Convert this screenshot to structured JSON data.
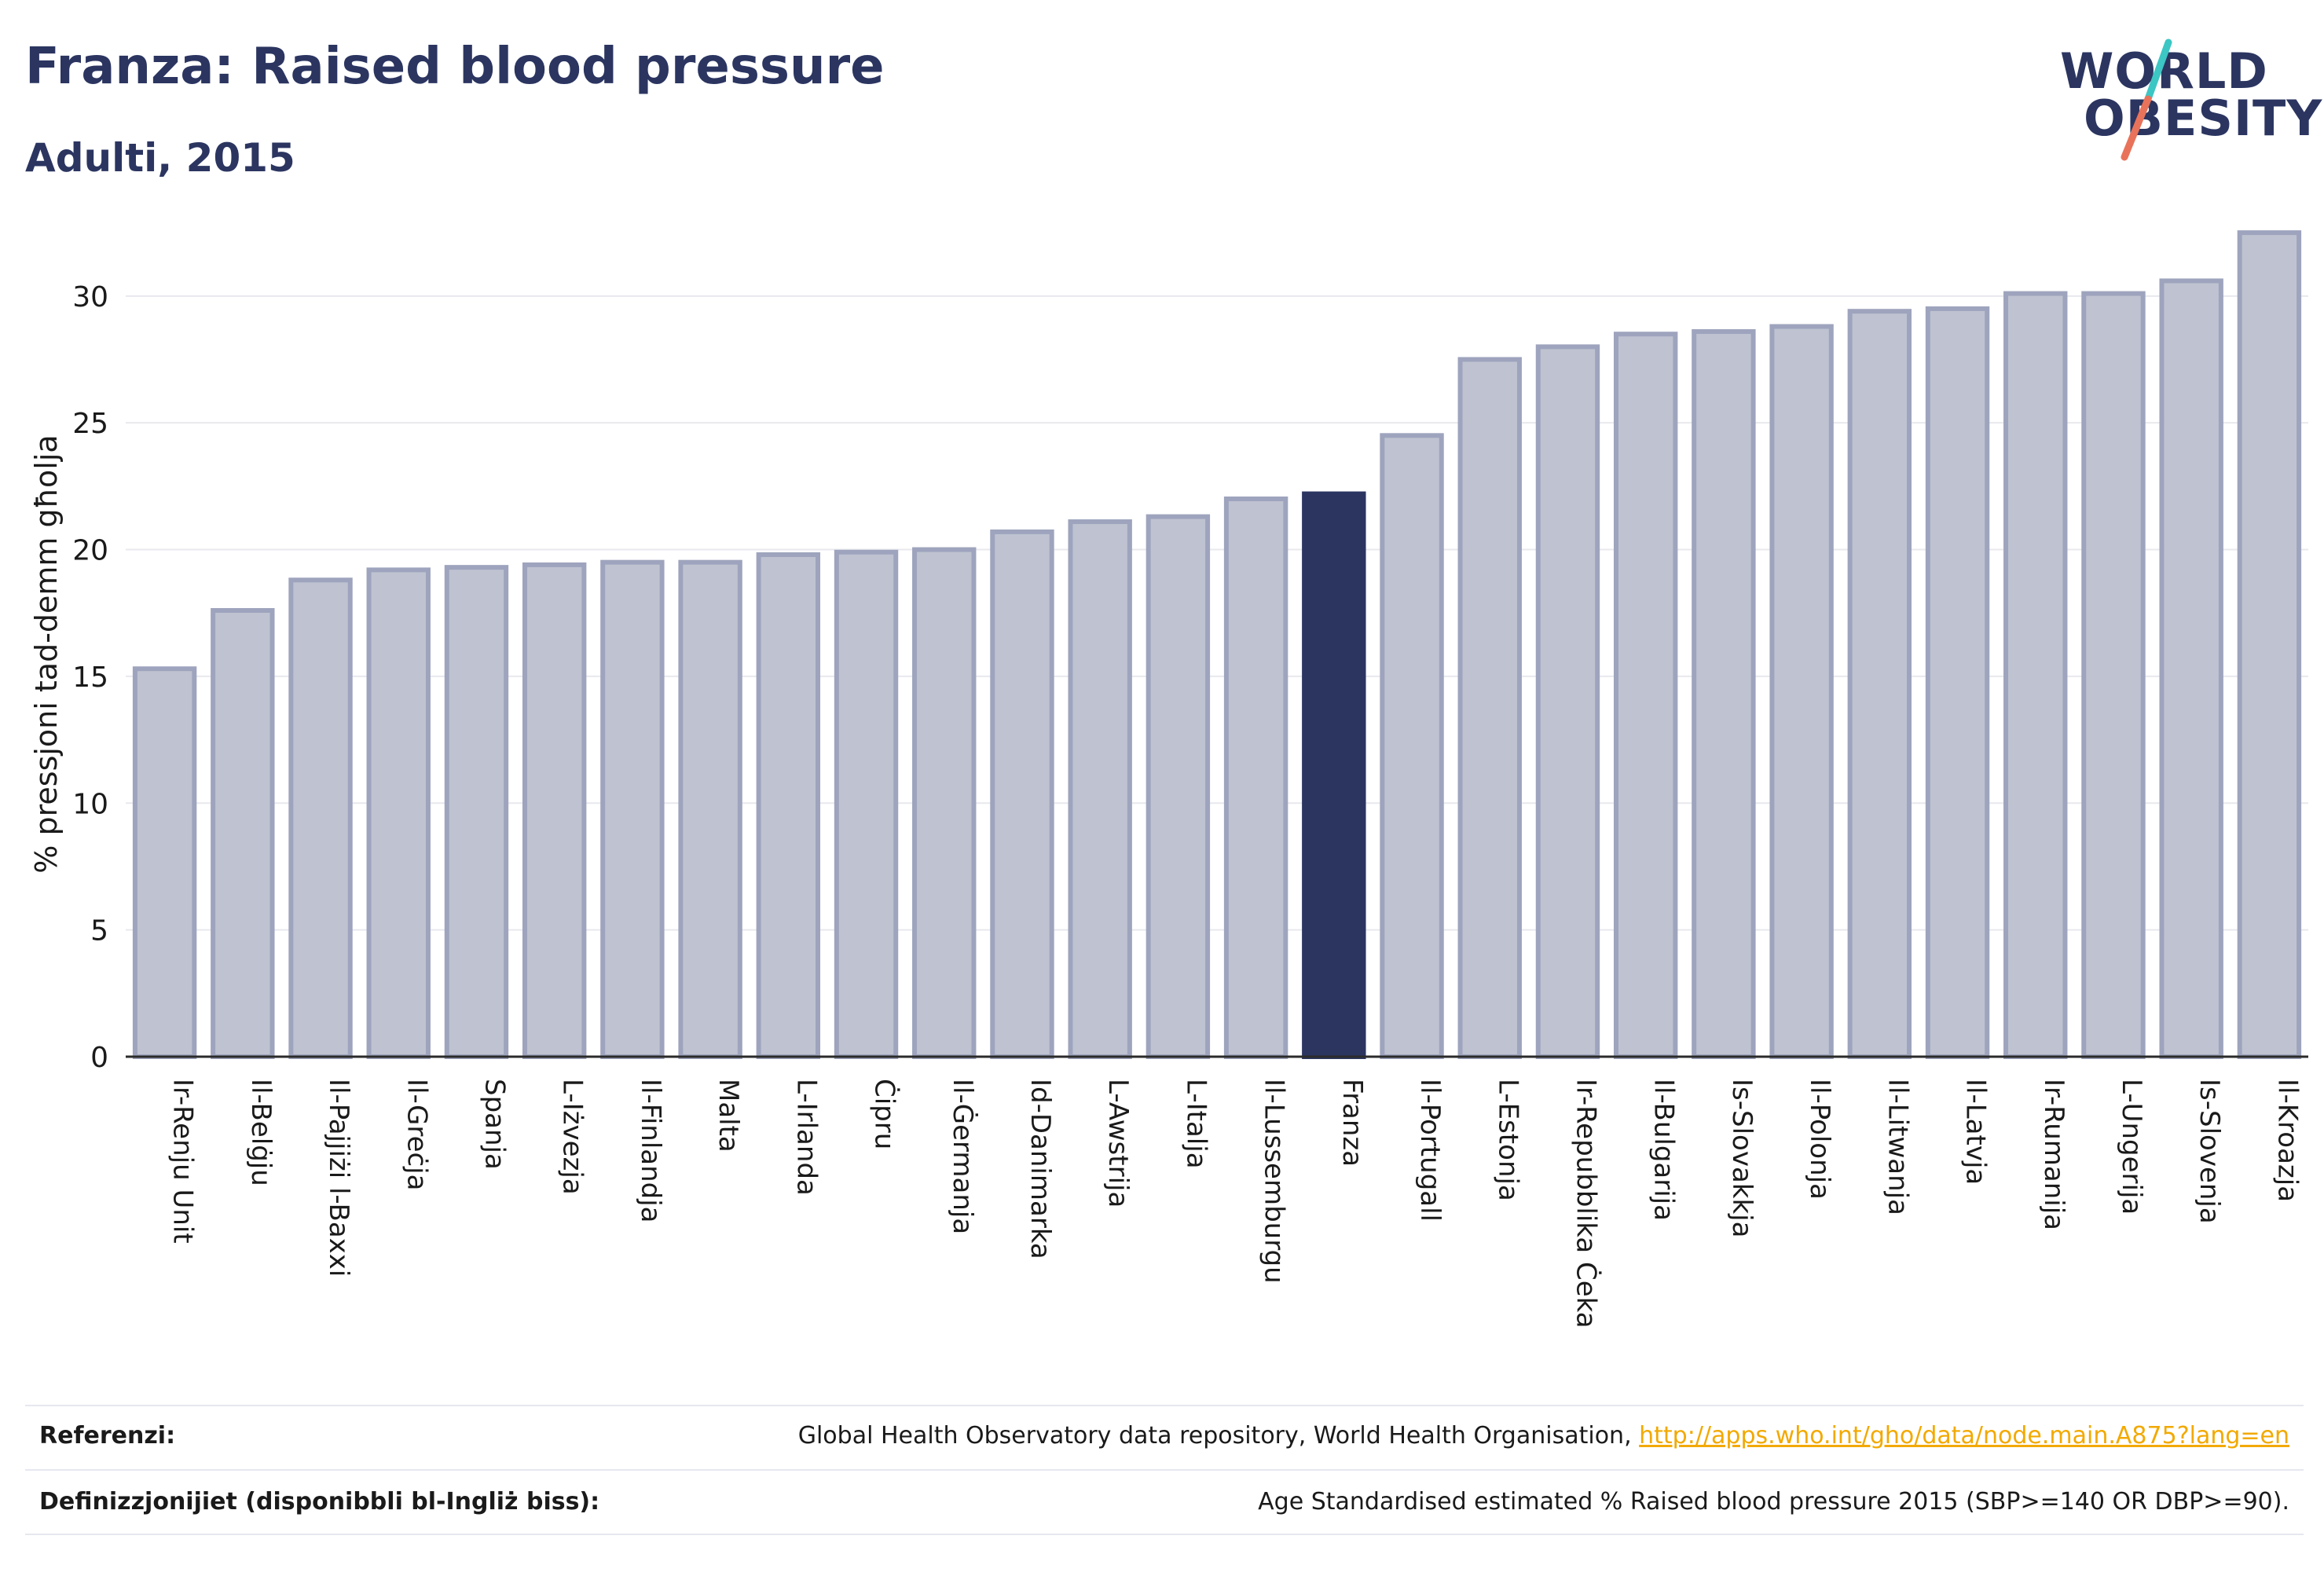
{
  "header": {
    "title": "Franza: Raised blood pressure",
    "subtitle": "Adulti, 2015"
  },
  "logo": {
    "line1": "WORLD",
    "line2": "OBESITY",
    "slash_colors": [
      "#3cc6c4",
      "#e8735a"
    ]
  },
  "colors": {
    "highlight": "#2b3560",
    "bar_fill": "#bfc3d1",
    "bar_stroke": "#9ea4bd",
    "axis": "#2b2b2b",
    "grid": "#e8e9ee",
    "link": "#f2a900"
  },
  "chart_data": {
    "type": "bar",
    "ylabel": "% pressjoni tad-demm għolja",
    "ylim": [
      0,
      33
    ],
    "yticks": [
      0,
      5,
      10,
      15,
      20,
      25,
      30
    ],
    "grid": true,
    "highlight": "Franza",
    "categories": [
      "Ir-Renju Unit",
      "Il-Belġju",
      "Il-Pajjiżi l-Baxxi",
      "Il-Greċja",
      "Spanja",
      "L-Iżvezja",
      "Il-Finlandja",
      "Malta",
      "L-Irlanda",
      "Ċipru",
      "Il-Ġermanja",
      "Id-Danimarka",
      "L-Awstrija",
      "L-Italja",
      "Il-Lussemburgu",
      "Franza",
      "Il-Portugall",
      "L-Estonja",
      "Ir-Repubblika Ċeka",
      "Il-Bulgarija",
      "Is-Slovakkja",
      "Il-Polonja",
      "Il-Litwanja",
      "Il-Latvja",
      "Ir-Rumanija",
      "L-Ungerija",
      "Is-Slovenja",
      "Il-Kroazja"
    ],
    "values": [
      15.3,
      17.6,
      18.8,
      19.2,
      19.3,
      19.4,
      19.5,
      19.5,
      19.8,
      19.9,
      20.0,
      20.7,
      21.1,
      21.3,
      22.0,
      22.2,
      24.5,
      27.5,
      28.0,
      28.5,
      28.6,
      28.8,
      29.4,
      29.5,
      30.1,
      30.1,
      30.6,
      32.5
    ]
  },
  "footer": {
    "references_label": "Referenzi:",
    "references_text": "Global Health Observatory data repository, World Health Organisation, ",
    "references_link": "http://apps.who.int/gho/data/node.main.A875?lang=en",
    "definitions_label": "Definizzjonijiet (disponibbli bl-Ingliż biss):",
    "definitions_text": "Age Standardised estimated % Raised blood pressure 2015 (SBP>=140 OR DBP>=90)."
  }
}
